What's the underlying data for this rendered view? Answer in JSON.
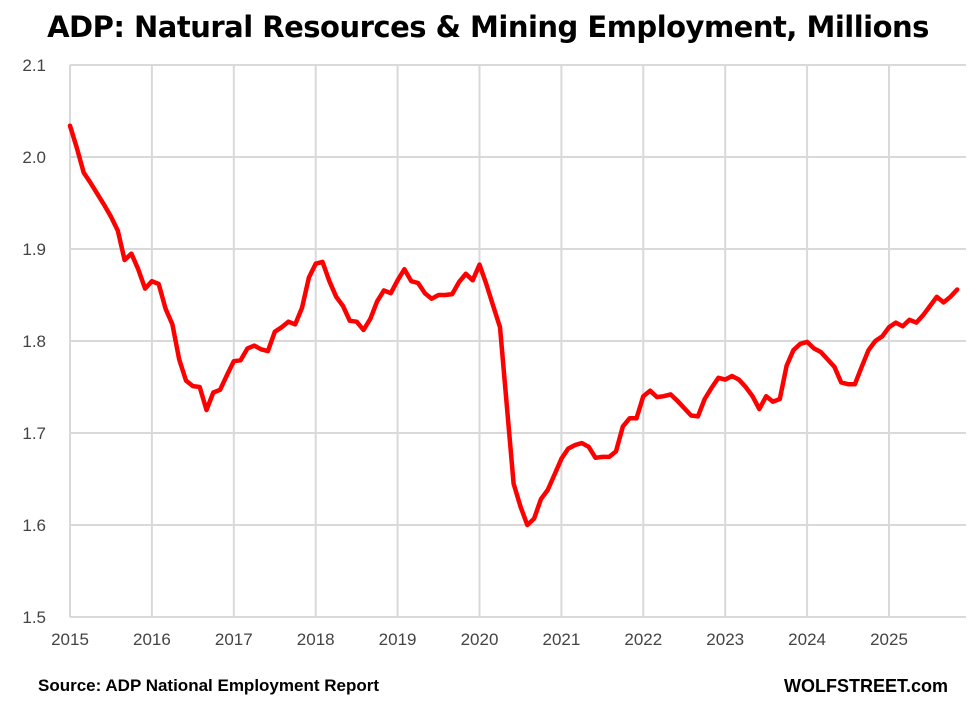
{
  "chart_data": {
    "type": "line",
    "title": "ADP: Natural Resources & Mining Employment, Millions",
    "xlabel": "",
    "ylabel": "",
    "xlim": [
      2015,
      2026
    ],
    "ylim": [
      1.5,
      2.1
    ],
    "grid": true,
    "x_ticks": [
      "2015",
      "2016",
      "2017",
      "2018",
      "2019",
      "2020",
      "2021",
      "2022",
      "2023",
      "2024",
      "2025"
    ],
    "y_ticks": [
      "1.5",
      "1.6",
      "1.7",
      "1.8",
      "1.9",
      "2.0",
      "2.1"
    ],
    "start": "2015-01",
    "frequency": "monthly",
    "series": [
      {
        "name": "Natural Resources & Mining Employment",
        "color": "#ff0000",
        "values": [
          2.034,
          2.01,
          1.983,
          1.972,
          1.96,
          1.948,
          1.935,
          1.92,
          1.888,
          1.895,
          1.878,
          1.857,
          1.865,
          1.862,
          1.835,
          1.818,
          1.78,
          1.757,
          1.751,
          1.75,
          1.725,
          1.744,
          1.747,
          1.763,
          1.778,
          1.779,
          1.792,
          1.795,
          1.791,
          1.789,
          1.81,
          1.815,
          1.821,
          1.818,
          1.836,
          1.869,
          1.884,
          1.886,
          1.865,
          1.848,
          1.838,
          1.822,
          1.821,
          1.812,
          1.824,
          1.843,
          1.855,
          1.852,
          1.866,
          1.878,
          1.865,
          1.863,
          1.852,
          1.846,
          1.85,
          1.85,
          1.851,
          1.864,
          1.873,
          1.866,
          1.883,
          1.862,
          1.838,
          1.815,
          1.73,
          1.645,
          1.62,
          1.6,
          1.607,
          1.628,
          1.638,
          1.655,
          1.672,
          1.683,
          1.687,
          1.689,
          1.685,
          1.673,
          1.674,
          1.674,
          1.68,
          1.707,
          1.716,
          1.716,
          1.74,
          1.746,
          1.739,
          1.74,
          1.742,
          1.735,
          1.727,
          1.719,
          1.718,
          1.737,
          1.749,
          1.76,
          1.758,
          1.762,
          1.758,
          1.75,
          1.74,
          1.726,
          1.74,
          1.734,
          1.737,
          1.773,
          1.79,
          1.797,
          1.799,
          1.792,
          1.788,
          1.78,
          1.772,
          1.755,
          1.753,
          1.753,
          1.772,
          1.79,
          1.8,
          1.805,
          1.815,
          1.82,
          1.816,
          1.823,
          1.82,
          1.828,
          1.838,
          1.848,
          1.842,
          1.848,
          1.856
        ]
      }
    ],
    "source": "Source: ADP National Employment Report",
    "brand": "WOLFSTREET.com"
  }
}
